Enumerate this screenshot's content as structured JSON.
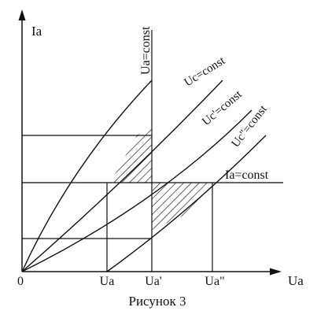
{
  "figure": {
    "axes": {
      "y_label": "Ia",
      "x_label": "Ua",
      "origin_label": "0"
    },
    "x_ticks": [
      "Ua",
      "Ua'",
      "Ua\""
    ],
    "curve_labels": {
      "ua_const": "Ua=const",
      "uc_const": "Uc=const",
      "uc1_const": "Uc'=const",
      "uc2_const": "Uc''=const",
      "ia_const": "Ia=const"
    },
    "caption": "Рисунок 3"
  }
}
